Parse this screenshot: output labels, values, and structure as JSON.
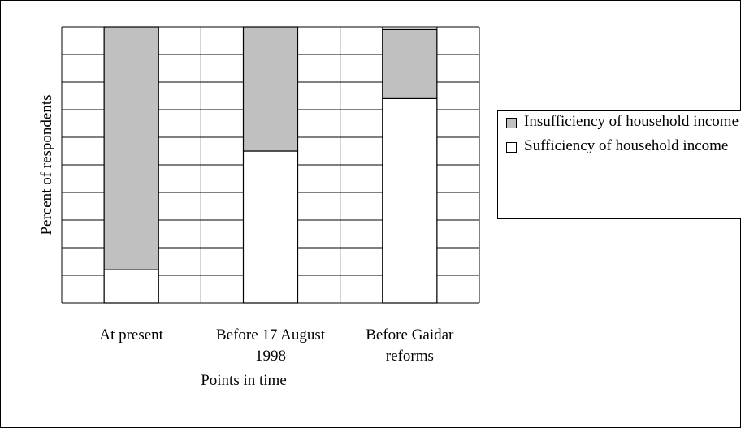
{
  "chart_data": {
    "type": "stacked-bar",
    "x_label": "Points in time",
    "y_label": "Percent of respondents",
    "categories": [
      "At present",
      "Before 17 August 1998",
      "Before Gaidar reforms"
    ],
    "series": [
      {
        "name": "Sufficiency of household income",
        "color": "#ffffff",
        "values": [
          12,
          55,
          74
        ]
      },
      {
        "name": "Insufficiency of household income",
        "color": "#c0c0c0",
        "values": [
          88,
          45,
          25
        ]
      }
    ],
    "ylim": [
      0,
      100
    ],
    "yticks": [
      0,
      10,
      20,
      30,
      40,
      50,
      60,
      70,
      80,
      90,
      100
    ],
    "grid": true,
    "legend": "right"
  }
}
